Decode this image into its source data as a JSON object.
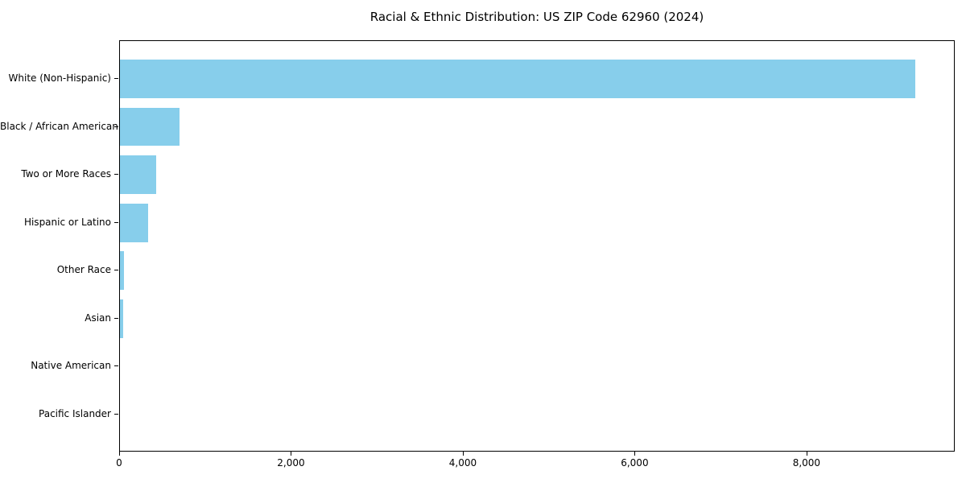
{
  "chart_data": {
    "type": "bar",
    "orientation": "horizontal",
    "title": "Racial & Ethnic Distribution: US ZIP Code 62960 (2024)",
    "categories": [
      "White (Non-Hispanic)",
      "Black / African American",
      "Two or More Races",
      "Hispanic or Latino",
      "Other Race",
      "Asian",
      "Native American",
      "Pacific Islander"
    ],
    "values": [
      9260,
      695,
      425,
      330,
      48,
      40,
      0,
      0
    ],
    "bar_color": "#87CEEB",
    "xlim": [
      0,
      9725
    ],
    "x_ticks": [
      0,
      2000,
      4000,
      6000,
      8000
    ],
    "x_tick_labels": [
      "0",
      "2,000",
      "4,000",
      "6,000",
      "8,000"
    ],
    "xlabel": "",
    "ylabel": "",
    "grid": false,
    "legend": "none",
    "background": "#ffffff",
    "text_color": "#000000",
    "spine_color": "#000000"
  }
}
